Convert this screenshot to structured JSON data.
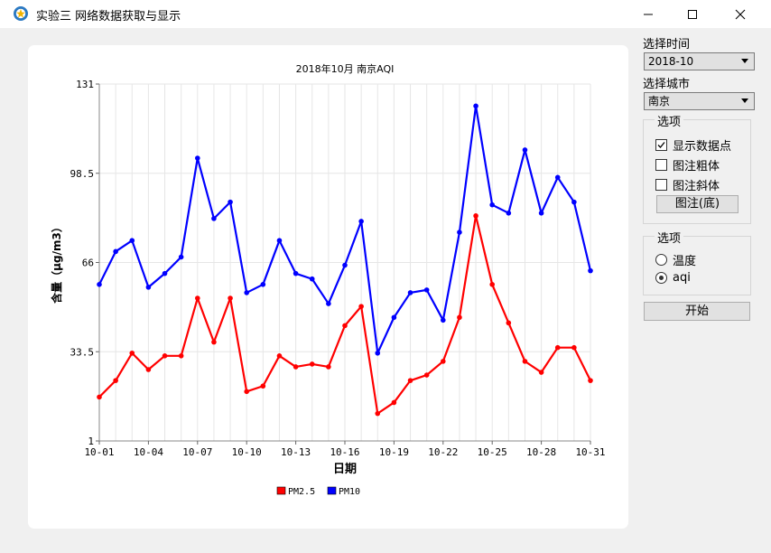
{
  "window": {
    "title": "实验三 网络数据获取与显示"
  },
  "panel": {
    "time_label": "选择时间",
    "time_value": "2018-10",
    "city_label": "选择城市",
    "city_value": "南京",
    "options1_title": "选项",
    "chk_show_points": "显示数据点",
    "chk_show_points_checked": true,
    "chk_legend_bold": "图注粗体",
    "chk_legend_italic": "图注斜体",
    "legend_pos_button": "图注(底)",
    "options2_title": "选项",
    "radio_temp": "温度",
    "radio_aqi": "aqi",
    "selected_radio": "aqi",
    "start_button": "开始"
  },
  "colors": {
    "pm25": "#ff0000",
    "pm10": "#0000ff",
    "grid": "#e6e6e6"
  },
  "chart_data": {
    "type": "line",
    "title": "2018年10月 南京AQI",
    "xlabel": "日期",
    "ylabel": "含量（μg/m3）",
    "categories": [
      "10-01",
      "10-02",
      "10-03",
      "10-04",
      "10-05",
      "10-06",
      "10-07",
      "10-08",
      "10-09",
      "10-10",
      "10-11",
      "10-12",
      "10-13",
      "10-14",
      "10-15",
      "10-16",
      "10-17",
      "10-18",
      "10-19",
      "10-20",
      "10-21",
      "10-22",
      "10-23",
      "10-24",
      "10-25",
      "10-26",
      "10-27",
      "10-28",
      "10-29",
      "10-30",
      "10-31"
    ],
    "x_tick_labels": [
      "10-01",
      "10-04",
      "10-07",
      "10-10",
      "10-13",
      "10-16",
      "10-19",
      "10-22",
      "10-25",
      "10-28",
      "10-31"
    ],
    "y_tick_labels": [
      "131",
      "98.5",
      "66",
      "33.5",
      "1"
    ],
    "ylim": [
      1,
      131
    ],
    "grid": true,
    "legend_position": "bottom",
    "series": [
      {
        "name": "PM2.5",
        "color": "#ff0000",
        "values": [
          17,
          23,
          33,
          27,
          32,
          32,
          53,
          37,
          53,
          19,
          21,
          32,
          28,
          29,
          28,
          43,
          50,
          11,
          15,
          23,
          25,
          30,
          46,
          83,
          58,
          44,
          30,
          26,
          35,
          35,
          23
        ]
      },
      {
        "name": "PM10",
        "color": "#0000ff",
        "values": [
          58,
          70,
          74,
          57,
          62,
          68,
          104,
          82,
          88,
          55,
          58,
          74,
          62,
          60,
          51,
          65,
          81,
          33,
          46,
          55,
          56,
          45,
          77,
          123,
          87,
          84,
          107,
          84,
          97,
          88,
          63
        ]
      }
    ]
  }
}
